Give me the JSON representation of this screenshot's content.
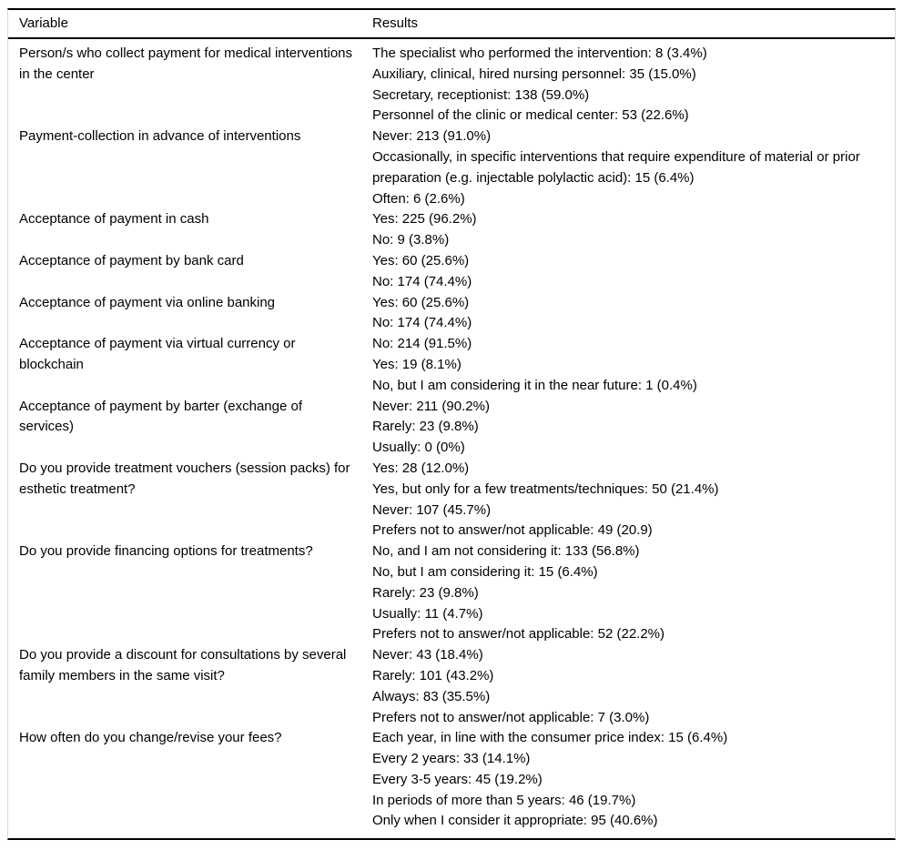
{
  "colors": {
    "text": "#000000",
    "background": "#ffffff",
    "horizontal_rule": "#000000",
    "side_border": "#d8d8d8"
  },
  "table": {
    "columns": [
      "Variable",
      "Results"
    ],
    "rows": [
      {
        "variable": "Person/s who collect payment for medical interventions in the center",
        "results": [
          "The specialist who performed the intervention: 8 (3.4%)",
          "Auxiliary, clinical, hired nursing personnel: 35 (15.0%)",
          "Secretary, receptionist: 138 (59.0%)",
          "Personnel of the clinic or medical center: 53 (22.6%)"
        ]
      },
      {
        "variable": "Payment-collection in advance of interventions",
        "results": [
          "Never: 213 (91.0%)",
          "Occasionally, in specific interventions that require expenditure of material or prior preparation (e.g. injectable polylactic acid): 15 (6.4%)",
          "Often: 6 (2.6%)"
        ]
      },
      {
        "variable": "Acceptance of payment in cash",
        "results": [
          "Yes: 225 (96.2%)",
          "No: 9 (3.8%)"
        ]
      },
      {
        "variable": "Acceptance of payment by bank card",
        "results": [
          "Yes: 60 (25.6%)",
          "No: 174 (74.4%)"
        ]
      },
      {
        "variable": "Acceptance of payment via online banking",
        "results": [
          "Yes: 60 (25.6%)",
          "No: 174 (74.4%)"
        ]
      },
      {
        "variable": "Acceptance of payment via virtual currency or blockchain",
        "results": [
          "No: 214 (91.5%)",
          "Yes: 19 (8.1%)",
          "No, but I am considering it in the near future: 1 (0.4%)"
        ]
      },
      {
        "variable": "Acceptance of payment by barter (exchange of services)",
        "results": [
          "Never: 211 (90.2%)",
          "Rarely: 23 (9.8%)",
          "Usually: 0 (0%)"
        ]
      },
      {
        "variable": "Do you provide treatment vouchers (session packs) for esthetic treatment?",
        "results": [
          "Yes: 28 (12.0%)",
          "Yes, but only for a few treatments/techniques: 50 (21.4%)",
          "Never: 107 (45.7%)",
          "Prefers not to answer/not applicable: 49 (20.9)"
        ]
      },
      {
        "variable": "Do you provide financing options for treatments?",
        "results": [
          "No, and I am not considering it: 133 (56.8%)",
          "No, but I am considering it: 15 (6.4%)",
          "Rarely: 23 (9.8%)",
          "Usually: 11 (4.7%)",
          "Prefers not to answer/not applicable: 52 (22.2%)"
        ]
      },
      {
        "variable": "Do you provide a discount for consultations by several family members in the same visit?",
        "results": [
          "Never: 43 (18.4%)",
          "Rarely: 101 (43.2%)",
          "Always: 83 (35.5%)",
          "Prefers not to answer/not applicable: 7 (3.0%)"
        ]
      },
      {
        "variable": "How often do you change/revise your fees?",
        "results": [
          "Each year, in line with the consumer price index: 15 (6.4%)",
          "Every 2 years: 33 (14.1%)",
          "Every 3-5 years: 45 (19.2%)",
          "In periods of more than 5 years: 46 (19.7%)",
          "Only when I consider it appropriate: 95 (40.6%)"
        ]
      }
    ]
  }
}
